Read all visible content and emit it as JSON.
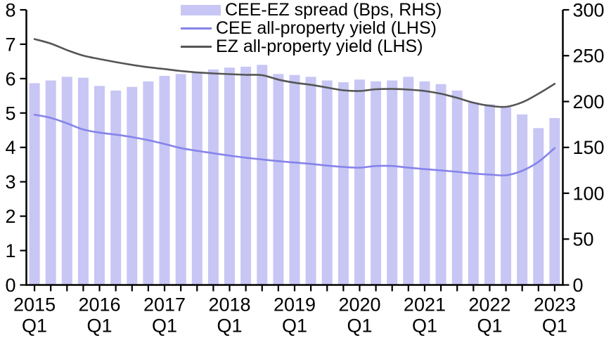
{
  "chart_data": {
    "type": "combo",
    "title": "",
    "legend_position": "top-center",
    "grid": false,
    "background": "#ffffff",
    "axis_color": "#000000",
    "categories": [
      "2015 Q1",
      "2015 Q2",
      "2015 Q3",
      "2015 Q4",
      "2016 Q1",
      "2016 Q2",
      "2016 Q3",
      "2016 Q4",
      "2017 Q1",
      "2017 Q2",
      "2017 Q3",
      "2017 Q4",
      "2018 Q1",
      "2018 Q2",
      "2018 Q3",
      "2018 Q4",
      "2019 Q1",
      "2019 Q2",
      "2019 Q3",
      "2019 Q4",
      "2020 Q1",
      "2020 Q2",
      "2020 Q3",
      "2020 Q4",
      "2021 Q1",
      "2021 Q2",
      "2021 Q3",
      "2021 Q4",
      "2022 Q1",
      "2022 Q2",
      "2022 Q3",
      "2022 Q4",
      "2023 Q1"
    ],
    "series": [
      {
        "name": "CEE-EZ spread (Bps, RHS)",
        "type": "bar",
        "axis": "right",
        "color": "#c8c6f4",
        "values": [
          220,
          223,
          227,
          226,
          217,
          212,
          216,
          222,
          228,
          230,
          232,
          235,
          237,
          238,
          240,
          230,
          229,
          227,
          223,
          221,
          224,
          222,
          223,
          227,
          222,
          219,
          212,
          199,
          197,
          194,
          186,
          171,
          182
        ]
      },
      {
        "name": "CEE all-property yield (LHS)",
        "type": "line",
        "axis": "left",
        "color": "#8583ea",
        "values": [
          4.95,
          4.86,
          4.7,
          4.52,
          4.43,
          4.37,
          4.3,
          4.21,
          4.1,
          3.98,
          3.9,
          3.83,
          3.76,
          3.7,
          3.65,
          3.6,
          3.56,
          3.52,
          3.47,
          3.43,
          3.41,
          3.46,
          3.46,
          3.41,
          3.37,
          3.33,
          3.29,
          3.24,
          3.21,
          3.19,
          3.32,
          3.58,
          3.98
        ]
      },
      {
        "name": "EZ all-property yield (LHS)",
        "type": "line",
        "axis": "left",
        "color": "#555555",
        "values": [
          7.15,
          7.02,
          6.83,
          6.67,
          6.57,
          6.48,
          6.4,
          6.33,
          6.28,
          6.22,
          6.18,
          6.15,
          6.13,
          6.11,
          6.1,
          5.97,
          5.88,
          5.82,
          5.74,
          5.66,
          5.64,
          5.69,
          5.7,
          5.68,
          5.64,
          5.56,
          5.44,
          5.3,
          5.21,
          5.18,
          5.31,
          5.56,
          5.85
        ]
      }
    ],
    "left_axis": {
      "min": 0,
      "max": 8,
      "tick_step": 1,
      "tick_labels": [
        "0",
        "1",
        "2",
        "3",
        "4",
        "5",
        "6",
        "7",
        "8"
      ]
    },
    "right_axis": {
      "min": 0,
      "max": 300,
      "tick_step": 50,
      "tick_labels": [
        "0",
        "50",
        "100",
        "150",
        "200",
        "250",
        "300"
      ]
    },
    "x_axis": {
      "major_ticks": [
        {
          "index": 0,
          "year": "2015",
          "quarter": "Q1"
        },
        {
          "index": 4,
          "year": "2016",
          "quarter": "Q1"
        },
        {
          "index": 8,
          "year": "2017",
          "quarter": "Q1"
        },
        {
          "index": 12,
          "year": "2018",
          "quarter": "Q1"
        },
        {
          "index": 16,
          "year": "2019",
          "quarter": "Q1"
        },
        {
          "index": 20,
          "year": "2020",
          "quarter": "Q1"
        },
        {
          "index": 24,
          "year": "2021",
          "quarter": "Q1"
        },
        {
          "index": 28,
          "year": "2022",
          "quarter": "Q1"
        },
        {
          "index": 32,
          "year": "2023",
          "quarter": "Q1"
        }
      ]
    }
  }
}
